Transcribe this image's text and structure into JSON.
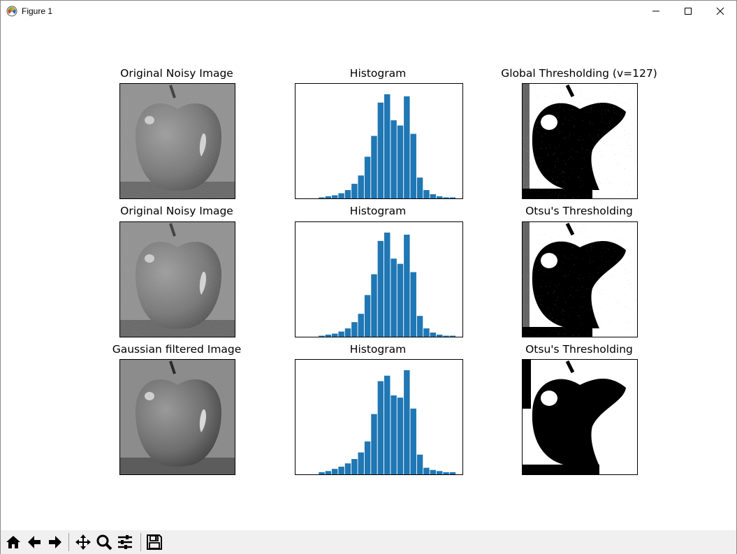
{
  "window": {
    "title": "Figure 1",
    "icons": [
      "matplotlib-icon",
      "minimize-icon",
      "maximize-icon",
      "close-icon"
    ]
  },
  "figure": {
    "rows": [
      {
        "image_title": "Original Noisy Image",
        "hist_title": "Histogram",
        "thresh_title": "Global Thresholding (v=127)"
      },
      {
        "image_title": "Original Noisy Image",
        "hist_title": "Histogram",
        "thresh_title": "Otsu's Thresholding"
      },
      {
        "image_title": "Gaussian filtered Image",
        "hist_title": "Histogram",
        "thresh_title": "Otsu's Thresholding"
      }
    ]
  },
  "chart_data": [
    {
      "type": "bar",
      "title": "Histogram",
      "x": [
        40,
        50,
        60,
        70,
        80,
        90,
        100,
        110,
        120,
        130,
        140,
        150,
        160,
        170,
        180,
        190,
        200,
        210,
        220,
        230,
        240
      ],
      "values": [
        1,
        2,
        3,
        5,
        8,
        14,
        22,
        40,
        60,
        92,
        100,
        75,
        70,
        98,
        62,
        20,
        8,
        4,
        2,
        1,
        1
      ],
      "color": "#1f77b4"
    },
    {
      "type": "bar",
      "title": "Histogram",
      "x": [
        40,
        50,
        60,
        70,
        80,
        90,
        100,
        110,
        120,
        130,
        140,
        150,
        160,
        170,
        180,
        190,
        200,
        210,
        220,
        230,
        240
      ],
      "values": [
        1,
        2,
        3,
        5,
        8,
        14,
        22,
        40,
        60,
        92,
        100,
        75,
        70,
        98,
        62,
        20,
        8,
        4,
        2,
        1,
        1
      ],
      "color": "#1f77b4"
    },
    {
      "type": "bar",
      "title": "Histogram",
      "x": [
        40,
        50,
        60,
        70,
        80,
        90,
        100,
        110,
        120,
        130,
        140,
        150,
        160,
        170,
        180,
        190,
        200,
        210,
        220,
        230,
        240
      ],
      "values": [
        2,
        3,
        5,
        7,
        10,
        14,
        20,
        30,
        55,
        85,
        90,
        72,
        70,
        95,
        60,
        18,
        6,
        4,
        3,
        2,
        2
      ],
      "color": "#1f77b4"
    }
  ],
  "toolbar": {
    "buttons": [
      "home-icon",
      "back-icon",
      "forward-icon",
      "pan-icon",
      "zoom-icon",
      "configure-subplots-icon",
      "save-icon"
    ]
  }
}
